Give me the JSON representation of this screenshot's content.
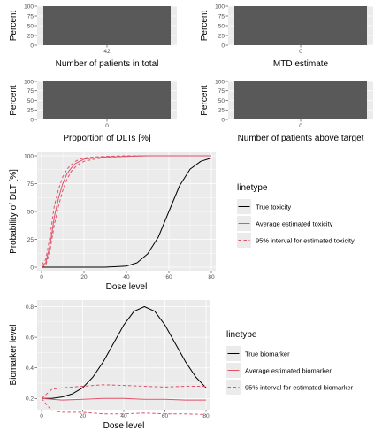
{
  "colors": {
    "panel_bg": "#ebebeb",
    "grid_major": "#ffffff",
    "bar_fill": "#595959",
    "true_line": "#000000",
    "estimate_line": "#df536b"
  },
  "chart_data": [
    {
      "type": "bar",
      "categories": [
        "42"
      ],
      "values": [
        100
      ],
      "xlabel": "Number of patients in total",
      "ylabel": "Percent",
      "ylim": [
        0,
        100
      ],
      "yticks": [
        "0",
        "25",
        "50",
        "75",
        "100"
      ]
    },
    {
      "type": "bar",
      "categories": [
        "0"
      ],
      "values": [
        100
      ],
      "xlabel": "MTD estimate",
      "ylabel": "Percent",
      "ylim": [
        0,
        100
      ],
      "yticks": [
        "0",
        "25",
        "50",
        "75",
        "100"
      ]
    },
    {
      "type": "bar",
      "categories": [
        "0"
      ],
      "values": [
        100
      ],
      "xlabel": "Proportion of DLTs [%]",
      "ylabel": "Percent",
      "ylim": [
        0,
        100
      ],
      "yticks": [
        "0",
        "25",
        "50",
        "75",
        "100"
      ]
    },
    {
      "type": "bar",
      "categories": [
        "0"
      ],
      "values": [
        100
      ],
      "xlabel": "Number of patients above target",
      "ylabel": "Percent",
      "ylim": [
        0,
        100
      ],
      "yticks": [
        "0",
        "25",
        "50",
        "75",
        "100"
      ]
    },
    {
      "type": "line",
      "xlabel": "Dose level",
      "ylabel": "Probability of DLT [%]",
      "xlim": [
        0,
        80
      ],
      "ylim": [
        0,
        100
      ],
      "xticks": [
        "0",
        "20",
        "40",
        "60",
        "80"
      ],
      "yticks": [
        "0",
        "25",
        "50",
        "75",
        "100"
      ],
      "legend_title": "linetype",
      "legend_position": "right",
      "grid": true,
      "series": [
        {
          "name": "True toxicity",
          "style": "solid",
          "color": "#000000",
          "x": [
            0,
            10,
            20,
            30,
            40,
            45,
            50,
            55,
            60,
            65,
            70,
            75,
            80
          ],
          "y": [
            0,
            0,
            0,
            0,
            1,
            4,
            12,
            27,
            50,
            73,
            88,
            95,
            98
          ]
        },
        {
          "name": "Average estimated toxicity",
          "style": "solid",
          "color": "#df536b",
          "x": [
            0,
            2,
            4,
            6,
            8,
            10,
            12,
            14,
            16,
            18,
            20,
            25,
            30,
            40,
            50,
            60,
            70,
            80
          ],
          "y": [
            1,
            4,
            20,
            45,
            62,
            75,
            84,
            89,
            93,
            95,
            97,
            98,
            99,
            99.5,
            100,
            100,
            100,
            100
          ]
        },
        {
          "name": "95% interval for estimated toxicity",
          "style": "dashed",
          "color": "#df536b",
          "x": [
            0,
            2,
            4,
            6,
            8,
            10,
            12,
            14,
            16,
            18,
            20,
            25,
            30,
            40,
            50,
            60,
            70,
            80
          ],
          "y": [
            2,
            7,
            28,
            55,
            70,
            81,
            88,
            92,
            95,
            97,
            98,
            99,
            99.5,
            100,
            100,
            100,
            100,
            100
          ]
        },
        {
          "name": "95% interval for estimated toxicity",
          "style": "dashed",
          "color": "#df536b",
          "x": [
            0,
            2,
            4,
            6,
            8,
            10,
            12,
            14,
            16,
            18,
            20,
            25,
            30,
            40,
            50,
            60,
            70,
            80
          ],
          "y": [
            0,
            2,
            15,
            38,
            55,
            69,
            79,
            86,
            90,
            93,
            95,
            97,
            98.5,
            99.5,
            100,
            100,
            100,
            100
          ]
        }
      ]
    },
    {
      "type": "line",
      "xlabel": "Dose level",
      "ylabel": "Biomarker level",
      "xlim": [
        0,
        80
      ],
      "ylim": [
        0.15,
        0.82
      ],
      "xticks": [
        "0",
        "20",
        "40",
        "60",
        "80"
      ],
      "ytick_values": [
        0.2,
        0.4,
        0.6,
        0.8
      ],
      "yticks": [
        "0.2",
        "0.4",
        "0.6",
        "0.8"
      ],
      "legend_title": "linetype",
      "legend_position": "right",
      "grid": true,
      "series": [
        {
          "name": "True biomarker",
          "style": "solid",
          "color": "#000000",
          "x": [
            0,
            5,
            10,
            15,
            20,
            25,
            30,
            35,
            40,
            45,
            50,
            55,
            60,
            65,
            70,
            75,
            80
          ],
          "y": [
            0.2,
            0.2,
            0.21,
            0.23,
            0.27,
            0.34,
            0.44,
            0.56,
            0.68,
            0.77,
            0.8,
            0.77,
            0.68,
            0.56,
            0.44,
            0.34,
            0.27
          ]
        },
        {
          "name": "Average estimated biomarker",
          "style": "solid",
          "color": "#df536b",
          "x": [
            0,
            10,
            20,
            30,
            40,
            50,
            60,
            70,
            80
          ],
          "y": [
            0.2,
            0.19,
            0.195,
            0.2,
            0.2,
            0.195,
            0.195,
            0.19,
            0.19
          ]
        },
        {
          "name": "95% interval for estimated biomarker",
          "style": "dashed",
          "color": "#df536b",
          "x": [
            0,
            5,
            10,
            20,
            30,
            40,
            50,
            60,
            70,
            80
          ],
          "y": [
            0.2,
            0.26,
            0.27,
            0.28,
            0.29,
            0.285,
            0.28,
            0.275,
            0.28,
            0.28
          ]
        },
        {
          "name": "95% interval for estimated biomarker",
          "style": "dashed",
          "color": "#df536b",
          "x": [
            0,
            5,
            10,
            20,
            30,
            40,
            50,
            60,
            70,
            80
          ],
          "y": [
            0.2,
            0.12,
            0.11,
            0.11,
            0.1,
            0.1,
            0.105,
            0.1,
            0.1,
            0.095
          ]
        }
      ]
    }
  ]
}
